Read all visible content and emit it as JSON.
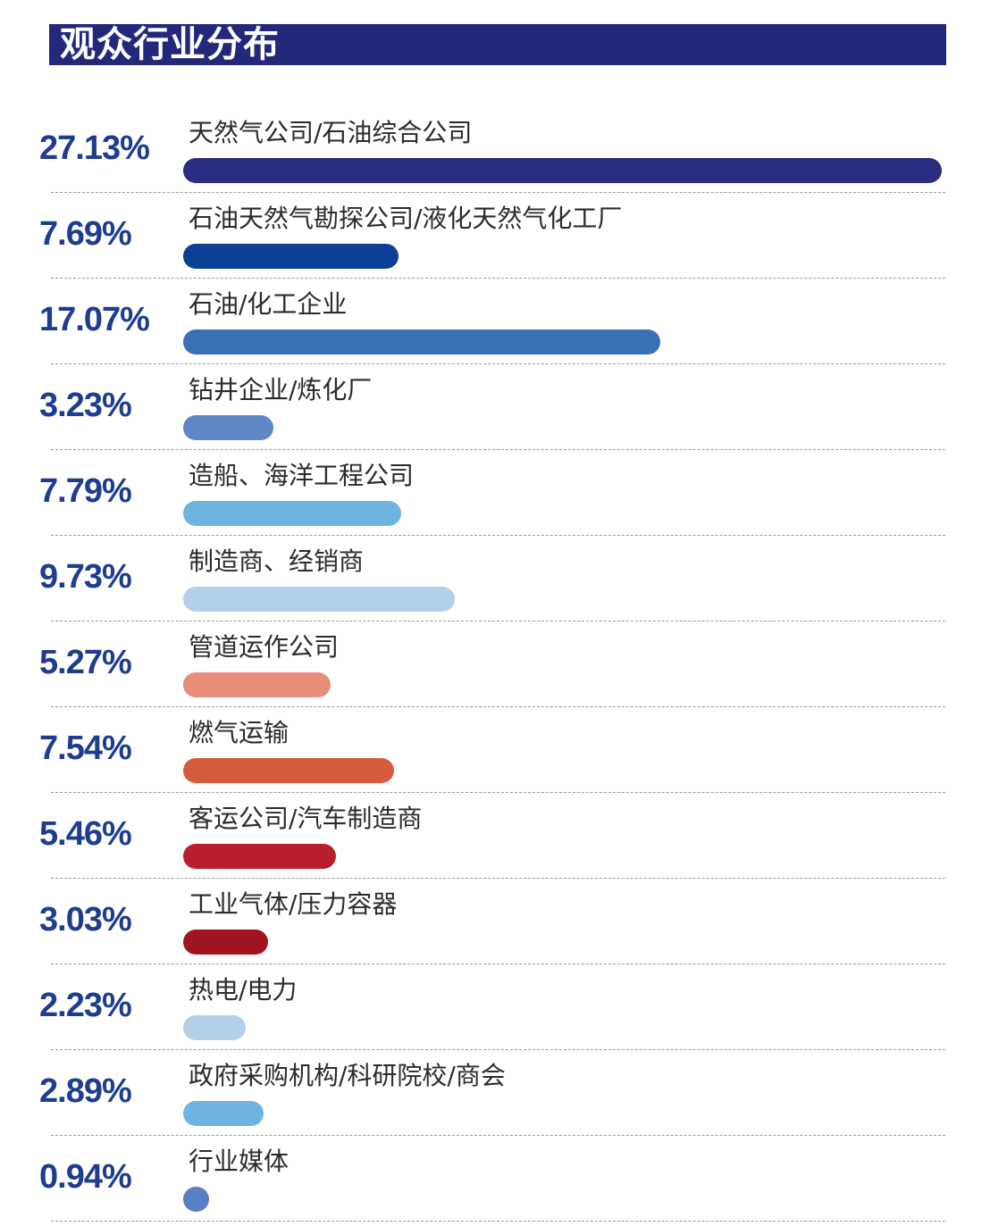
{
  "header": {
    "title": "观众行业分布"
  },
  "chart_data": {
    "type": "bar",
    "orientation": "horizontal",
    "title": "观众行业分布",
    "value_unit": "%",
    "max_value": 27.13,
    "categories": [
      "天然气公司/石油综合公司",
      "石油天然气勘探公司/液化天然气化工厂",
      "石油/化工企业",
      "钻井企业/炼化厂",
      "造船、海洋工程公司",
      "制造商、经销商",
      "管道运作公司",
      "燃气运输",
      "客运公司/汽车制造商",
      "工业气体/压力容器",
      "热电/电力",
      "政府采购机构/科研院校/商会",
      "行业媒体"
    ],
    "values": [
      27.13,
      7.69,
      17.07,
      3.23,
      7.79,
      9.73,
      5.27,
      7.54,
      5.46,
      3.03,
      2.23,
      2.89,
      0.94
    ],
    "value_labels": [
      "27.13%",
      "7.69%",
      "17.07%",
      "3.23%",
      "7.79%",
      "9.73%",
      "5.27%",
      "7.54%",
      "5.46%",
      "3.03%",
      "2.23%",
      "2.89%",
      "0.94%"
    ],
    "colors": [
      "#2b2d80",
      "#0d3f96",
      "#3a70b4",
      "#5f87c5",
      "#6db4e0",
      "#b3cfea",
      "#e78d7a",
      "#d45c3c",
      "#b81e2c",
      "#a0141f",
      "#b3cfea",
      "#6db4e0",
      "#5a7fc4"
    ]
  }
}
